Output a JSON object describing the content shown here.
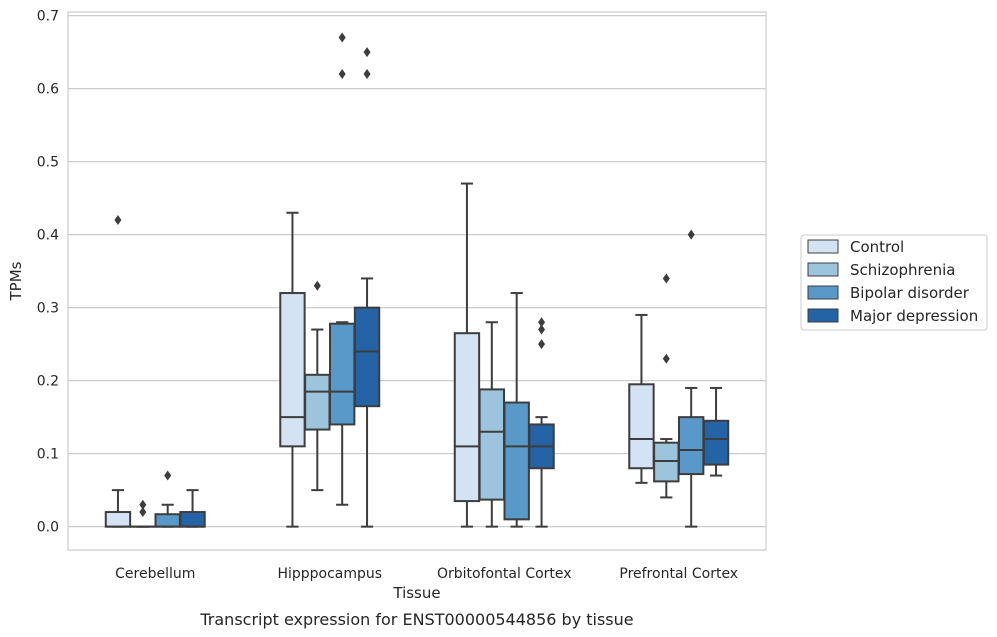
{
  "chart_data": {
    "type": "box",
    "caption": "Transcript expression for ENST00000544856 by tissue",
    "xlabel": "Tissue",
    "ylabel": "TPMs",
    "ylim": [
      -0.032,
      0.705
    ],
    "yticks": [
      "0.0",
      "0.1",
      "0.2",
      "0.3",
      "0.4",
      "0.5",
      "0.6",
      "0.7"
    ],
    "ytick_values": [
      0.0,
      0.1,
      0.2,
      0.3,
      0.4,
      0.5,
      0.6,
      0.7
    ],
    "grid": true,
    "legend_position": "right",
    "categories": [
      "Cerebellum",
      "Hipppocampus",
      "Orbitofontal Cortex",
      "Prefrontal Cortex"
    ],
    "series": [
      {
        "name": "Control",
        "color": "#d4e3f3",
        "boxes": [
          {
            "whislo": 0.0,
            "q1": 0.0,
            "med": 0.0,
            "q3": 0.02,
            "whishi": 0.05,
            "fliers": [
              0.42
            ]
          },
          {
            "whislo": 0.0,
            "q1": 0.11,
            "med": 0.15,
            "q3": 0.32,
            "whishi": 0.43,
            "fliers": []
          },
          {
            "whislo": 0.0,
            "q1": 0.035,
            "med": 0.11,
            "q3": 0.265,
            "whishi": 0.47,
            "fliers": []
          },
          {
            "whislo": 0.06,
            "q1": 0.08,
            "med": 0.12,
            "q3": 0.195,
            "whishi": 0.29,
            "fliers": []
          }
        ]
      },
      {
        "name": "Schizophrenia",
        "color": "#9cc4dd",
        "boxes": [
          {
            "whislo": 0.0,
            "q1": 0.0,
            "med": 0.0,
            "q3": 0.0,
            "whishi": 0.0,
            "fliers": [
              0.02,
              0.03
            ]
          },
          {
            "whislo": 0.05,
            "q1": 0.133,
            "med": 0.185,
            "q3": 0.208,
            "whishi": 0.27,
            "fliers": [
              0.33
            ]
          },
          {
            "whislo": 0.0,
            "q1": 0.037,
            "med": 0.13,
            "q3": 0.188,
            "whishi": 0.28,
            "fliers": []
          },
          {
            "whislo": 0.04,
            "q1": 0.062,
            "med": 0.09,
            "q3": 0.115,
            "whishi": 0.12,
            "fliers": [
              0.23,
              0.34
            ]
          }
        ]
      },
      {
        "name": "Bipolar disorder",
        "color": "#5899c9",
        "boxes": [
          {
            "whislo": 0.0,
            "q1": 0.0,
            "med": 0.0,
            "q3": 0.017,
            "whishi": 0.03,
            "fliers": [
              0.07
            ]
          },
          {
            "whislo": 0.03,
            "q1": 0.14,
            "med": 0.185,
            "q3": 0.278,
            "whishi": 0.28,
            "fliers": [
              0.62,
              0.67
            ]
          },
          {
            "whislo": 0.0,
            "q1": 0.01,
            "med": 0.11,
            "q3": 0.17,
            "whishi": 0.32,
            "fliers": []
          },
          {
            "whislo": 0.0,
            "q1": 0.072,
            "med": 0.105,
            "q3": 0.15,
            "whishi": 0.19,
            "fliers": [
              0.4
            ]
          }
        ]
      },
      {
        "name": "Major depression",
        "color": "#2463a6",
        "boxes": [
          {
            "whislo": 0.0,
            "q1": 0.0,
            "med": 0.0,
            "q3": 0.02,
            "whishi": 0.05,
            "fliers": []
          },
          {
            "whislo": 0.0,
            "q1": 0.165,
            "med": 0.24,
            "q3": 0.3,
            "whishi": 0.34,
            "fliers": [
              0.62,
              0.65
            ]
          },
          {
            "whislo": 0.0,
            "q1": 0.08,
            "med": 0.11,
            "q3": 0.14,
            "whishi": 0.15,
            "fliers": [
              0.25,
              0.27,
              0.28
            ]
          },
          {
            "whislo": 0.07,
            "q1": 0.085,
            "med": 0.12,
            "q3": 0.145,
            "whishi": 0.19,
            "fliers": []
          }
        ]
      }
    ]
  }
}
